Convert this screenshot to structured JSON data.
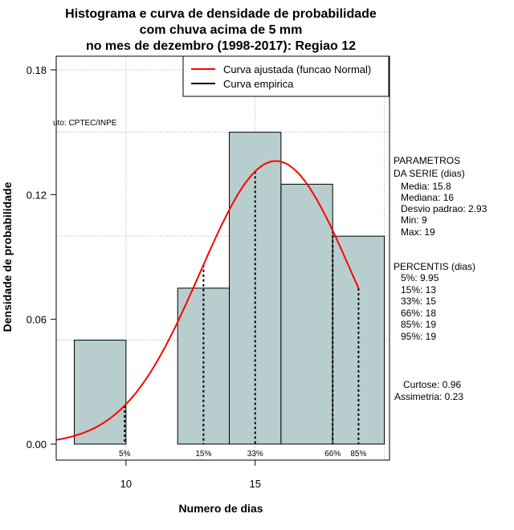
{
  "chart_data": {
    "type": "histogram",
    "title_lines": [
      "Histograma e curva de densidade de probabilidade",
      "com chuva acima de 5 mm",
      "no mes de dezembro (1998-2017): Regiao 12"
    ],
    "xlabel": "Numero de dias",
    "ylabel": "Densidade de probabilidade",
    "xlim": [
      7.3,
      20.2
    ],
    "ylim": [
      0,
      0.18
    ],
    "x_ticks": [
      10,
      15
    ],
    "y_ticks": [
      0.0,
      0.06,
      0.12,
      0.18
    ],
    "y_tick_labels": [
      "0.00",
      "0.06",
      "0.12",
      "0.18"
    ],
    "grid": true,
    "grid_x": [
      10,
      15,
      20
    ],
    "grid_y": [
      0.05,
      0.1,
      0.15,
      0.18
    ],
    "bins": [
      {
        "x0": 8,
        "x1": 10,
        "density": 0.05
      },
      {
        "x0": 10,
        "x1": 12,
        "density": 0
      },
      {
        "x0": 12,
        "x1": 14,
        "density": 0.075
      },
      {
        "x0": 14,
        "x1": 16,
        "density": 0.15
      },
      {
        "x0": 16,
        "x1": 18,
        "density": 0.125
      },
      {
        "x0": 18,
        "x1": 20,
        "density": 0.1
      }
    ],
    "bar_color": "#b8cece",
    "fitted_curve": {
      "distribution": "normal",
      "mean": 15.8,
      "sd": 2.93,
      "x_range": [
        7.3,
        19.0
      ],
      "color": "#ff0000"
    },
    "percentile_lines": [
      {
        "label": "5%",
        "x": 9.95
      },
      {
        "label": "15%",
        "x": 13
      },
      {
        "label": "33%",
        "x": 15
      },
      {
        "label": "66%",
        "x": 18
      },
      {
        "label": "85%",
        "x": 19
      }
    ],
    "legend": {
      "position": "top-right",
      "entries": [
        {
          "label": "Curva ajustada (funcao Normal)",
          "color": "#ff0000"
        },
        {
          "label": "Curva empirica",
          "color": "#000000"
        }
      ]
    },
    "source_note": "uto: CPTEC/INPE",
    "parametros": {
      "heading": [
        "PARAMETROS",
        "DA SERIE (dias)"
      ],
      "lines": [
        "Media: 15.8",
        "Mediana: 16",
        "Desvio padrao: 2.93",
        "Min: 9",
        "Max: 19"
      ]
    },
    "percentis": {
      "heading": "PERCENTIS (dias)",
      "lines": [
        "5%: 9.95",
        "15%: 13",
        "33%: 15",
        "66%: 18",
        "85%: 19",
        "95%: 19"
      ]
    },
    "shape": {
      "lines": [
        "Curtose: 0.96",
        "Assimetria: 0.23"
      ]
    }
  }
}
